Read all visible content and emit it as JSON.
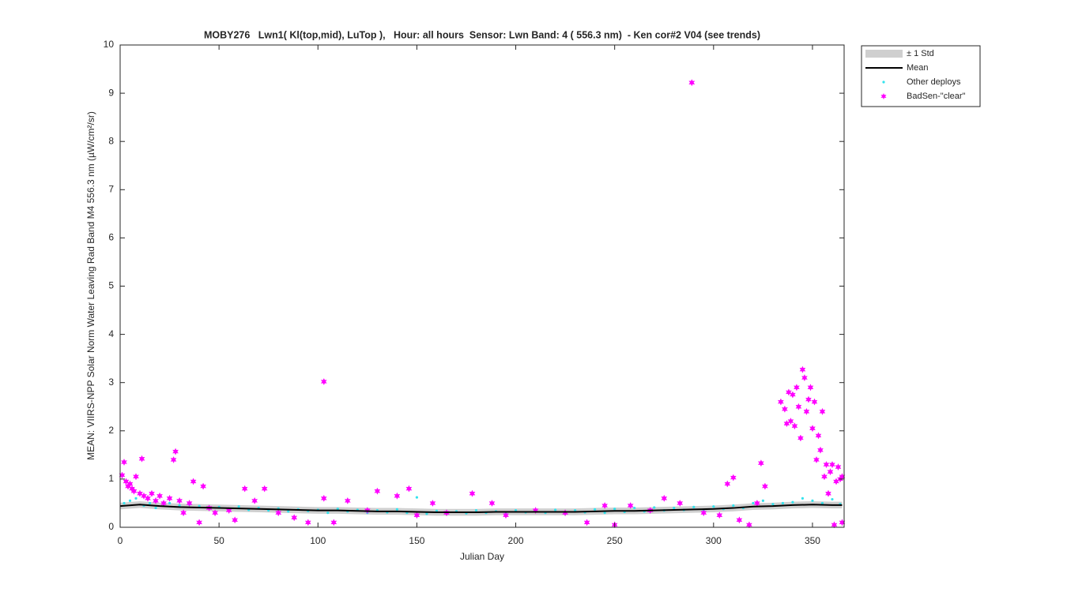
{
  "chart_data": {
    "type": "scatter",
    "title": "MOBY276   Lwn1( Kl(top,mid), LuTop ),   Hour: all hours  Sensor: Lwn Band: 4 ( 556.3 nm)  - Ken cor#2 V04 (see trends)",
    "x_label": "Julian Day",
    "y_label": "MEAN: VIIRS-NPP Solar Norm Water Leaving Rad Band M4 556.3 nm (µW/cm²/sr)",
    "xlim": [
      0,
      366
    ],
    "ylim": [
      0,
      10
    ],
    "xticks": [
      0,
      50,
      100,
      150,
      200,
      250,
      300,
      350
    ],
    "yticks": [
      0,
      1,
      2,
      3,
      4,
      5,
      6,
      7,
      8,
      9,
      10
    ],
    "grid": false,
    "legend": "outside-top-right",
    "series": [
      {
        "name": "± 1 Std",
        "style": "band",
        "color": "#cfcfcf",
        "x": [
          0,
          10,
          20,
          30,
          40,
          50,
          60,
          70,
          80,
          90,
          100,
          110,
          120,
          130,
          140,
          150,
          160,
          170,
          180,
          190,
          200,
          210,
          220,
          230,
          240,
          250,
          260,
          270,
          280,
          290,
          300,
          310,
          320,
          330,
          340,
          350,
          360,
          365
        ],
        "lower": [
          0.37,
          0.4,
          0.37,
          0.35,
          0.34,
          0.33,
          0.32,
          0.31,
          0.3,
          0.29,
          0.28,
          0.28,
          0.27,
          0.26,
          0.26,
          0.25,
          0.24,
          0.24,
          0.24,
          0.25,
          0.25,
          0.25,
          0.25,
          0.25,
          0.26,
          0.27,
          0.27,
          0.28,
          0.29,
          0.3,
          0.31,
          0.33,
          0.36,
          0.37,
          0.39,
          0.4,
          0.39,
          0.39
        ],
        "upper": [
          0.51,
          0.54,
          0.51,
          0.49,
          0.48,
          0.47,
          0.46,
          0.45,
          0.44,
          0.43,
          0.42,
          0.42,
          0.41,
          0.4,
          0.4,
          0.39,
          0.38,
          0.38,
          0.38,
          0.39,
          0.39,
          0.39,
          0.39,
          0.39,
          0.4,
          0.41,
          0.41,
          0.42,
          0.43,
          0.44,
          0.45,
          0.47,
          0.5,
          0.51,
          0.53,
          0.54,
          0.53,
          0.53
        ]
      },
      {
        "name": "Mean",
        "style": "line",
        "color": "#000000",
        "x": [
          0,
          10,
          20,
          30,
          40,
          50,
          60,
          70,
          80,
          90,
          100,
          110,
          120,
          130,
          140,
          150,
          160,
          170,
          180,
          190,
          200,
          210,
          220,
          230,
          240,
          250,
          260,
          270,
          280,
          290,
          300,
          310,
          320,
          330,
          340,
          350,
          360,
          365
        ],
        "values": [
          0.44,
          0.47,
          0.44,
          0.42,
          0.41,
          0.4,
          0.39,
          0.38,
          0.37,
          0.36,
          0.35,
          0.35,
          0.34,
          0.33,
          0.33,
          0.32,
          0.31,
          0.31,
          0.31,
          0.32,
          0.32,
          0.32,
          0.32,
          0.32,
          0.33,
          0.34,
          0.34,
          0.35,
          0.36,
          0.37,
          0.38,
          0.4,
          0.43,
          0.44,
          0.46,
          0.47,
          0.46,
          0.46
        ]
      },
      {
        "name": "Other deploys",
        "style": "dots",
        "color": "#33e3ee",
        "x": [
          2,
          5,
          8,
          12,
          15,
          18,
          22,
          25,
          30,
          35,
          40,
          45,
          50,
          55,
          60,
          65,
          70,
          75,
          80,
          85,
          90,
          95,
          100,
          105,
          110,
          115,
          120,
          125,
          130,
          135,
          140,
          145,
          150,
          155,
          160,
          165,
          170,
          175,
          180,
          185,
          190,
          195,
          200,
          205,
          210,
          215,
          220,
          225,
          230,
          235,
          240,
          245,
          250,
          255,
          260,
          265,
          270,
          275,
          280,
          285,
          290,
          295,
          300,
          305,
          310,
          315,
          320,
          325,
          330,
          335,
          340,
          345,
          350,
          355,
          360,
          364
        ],
        "values": [
          0.5,
          0.55,
          0.6,
          0.45,
          0.5,
          0.4,
          0.48,
          0.5,
          0.45,
          0.47,
          0.44,
          0.4,
          0.42,
          0.38,
          0.43,
          0.36,
          0.4,
          0.35,
          0.39,
          0.33,
          0.37,
          0.34,
          0.36,
          0.3,
          0.38,
          0.33,
          0.36,
          0.3,
          0.35,
          0.31,
          0.37,
          0.3,
          0.62,
          0.28,
          0.34,
          0.3,
          0.33,
          0.29,
          0.35,
          0.3,
          0.33,
          0.28,
          0.35,
          0.31,
          0.34,
          0.3,
          0.36,
          0.3,
          0.35,
          0.31,
          0.37,
          0.3,
          0.38,
          0.32,
          0.4,
          0.33,
          0.41,
          0.35,
          0.4,
          0.36,
          0.42,
          0.35,
          0.43,
          0.38,
          0.45,
          0.4,
          0.5,
          0.55,
          0.48,
          0.5,
          0.52,
          0.6,
          0.55,
          0.5,
          0.58,
          0.48
        ]
      },
      {
        "name": "BadSen-\"clear\"",
        "style": "stars",
        "color": "#ff00ff",
        "x": [
          1,
          2,
          3,
          4,
          5,
          6,
          7,
          8,
          10,
          11,
          12,
          14,
          16,
          18,
          20,
          22,
          25,
          27,
          28,
          30,
          32,
          35,
          37,
          40,
          42,
          45,
          48,
          55,
          58,
          63,
          68,
          73,
          80,
          88,
          95,
          103,
          103,
          108,
          115,
          125,
          130,
          140,
          146,
          150,
          158,
          165,
          178,
          188,
          195,
          210,
          225,
          236,
          245,
          250,
          258,
          268,
          275,
          283,
          289,
          295,
          303,
          307,
          310,
          313,
          318,
          322,
          324,
          326,
          334,
          336,
          337,
          338,
          339,
          340,
          341,
          342,
          343,
          344,
          345,
          346,
          347,
          348,
          349,
          350,
          351,
          352,
          353,
          354,
          355,
          356,
          357,
          358,
          359,
          360,
          361,
          362,
          363,
          364,
          365,
          365
        ],
        "values": [
          1.08,
          1.35,
          0.95,
          0.85,
          0.9,
          0.8,
          0.75,
          1.05,
          0.7,
          1.42,
          0.65,
          0.6,
          0.7,
          0.55,
          0.65,
          0.5,
          0.6,
          1.4,
          1.57,
          0.55,
          0.3,
          0.5,
          0.95,
          0.1,
          0.85,
          0.4,
          0.3,
          0.35,
          0.15,
          0.8,
          0.55,
          0.8,
          0.3,
          0.2,
          0.1,
          3.02,
          0.6,
          0.1,
          0.55,
          0.35,
          0.75,
          0.65,
          0.8,
          0.25,
          0.5,
          0.3,
          0.7,
          0.5,
          0.25,
          0.35,
          0.3,
          0.1,
          0.45,
          0.05,
          0.45,
          0.35,
          0.6,
          0.5,
          9.22,
          0.3,
          0.25,
          0.9,
          1.03,
          0.15,
          0.05,
          0.5,
          1.33,
          0.85,
          2.6,
          2.45,
          2.15,
          2.8,
          2.2,
          2.75,
          2.1,
          2.9,
          2.5,
          1.85,
          3.27,
          3.1,
          2.4,
          2.65,
          2.9,
          2.05,
          2.6,
          1.4,
          1.9,
          1.6,
          2.4,
          1.05,
          1.3,
          0.7,
          1.15,
          1.3,
          0.05,
          0.95,
          1.25,
          1.0,
          1.05,
          0.1
        ]
      }
    ]
  }
}
